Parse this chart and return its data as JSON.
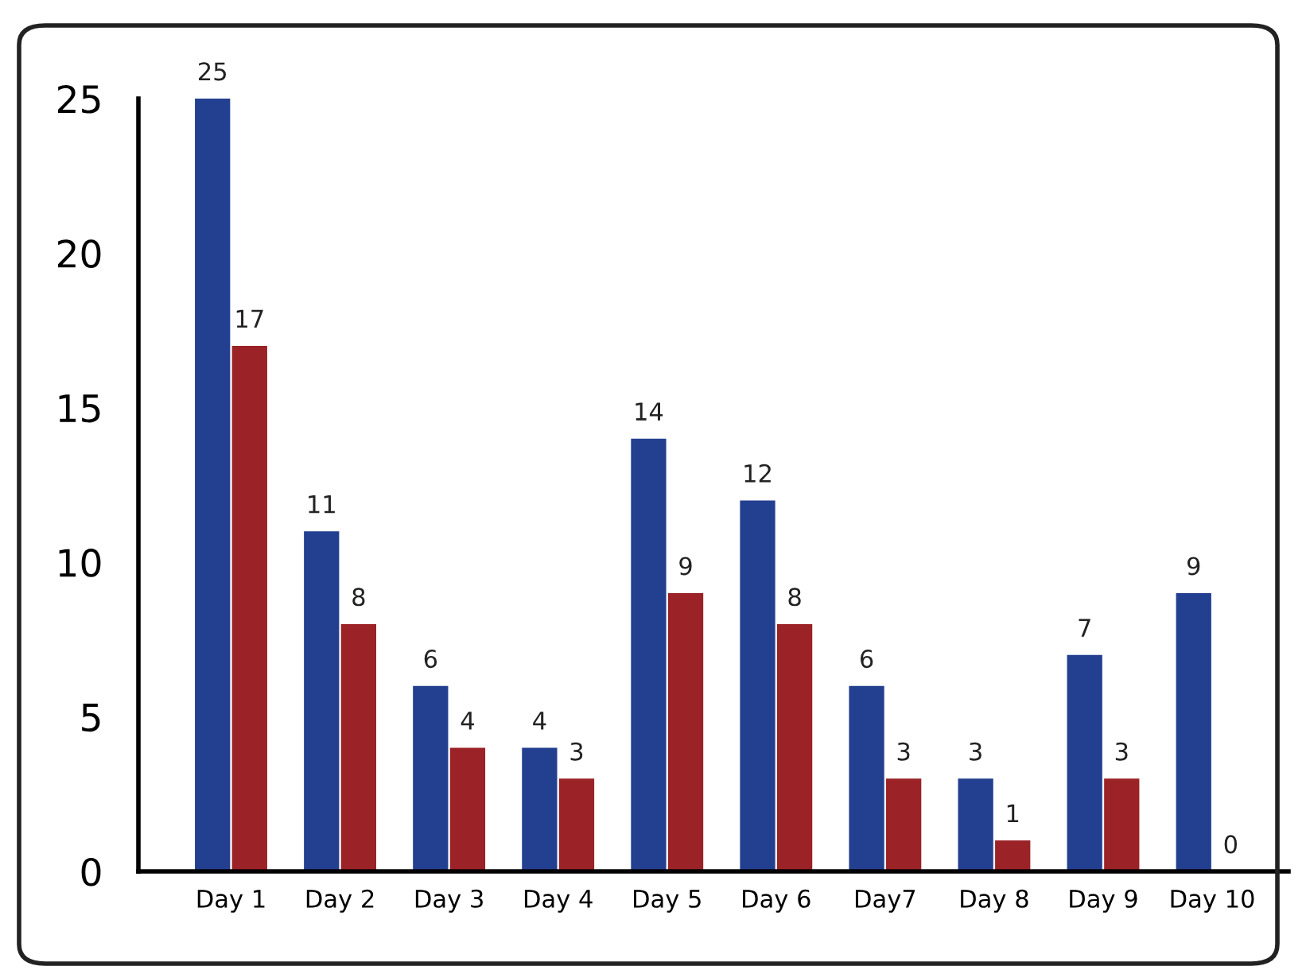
{
  "chart_data": {
    "type": "bar",
    "categories": [
      "Day 1",
      "Day 2",
      "Day 3",
      "Day 4",
      "Day 5",
      "Day 6",
      "Day7",
      "Day 8",
      "Day 9",
      "Day 10"
    ],
    "series": [
      {
        "color": "#233f8f",
        "values": [
          25,
          11,
          6,
          4,
          14,
          12,
          6,
          3,
          7,
          9
        ]
      },
      {
        "color": "#9b2226",
        "values": [
          17,
          8,
          4,
          3,
          9,
          8,
          3,
          1,
          3,
          0
        ]
      }
    ],
    "data_labels": true,
    "ylim": [
      0,
      25
    ],
    "yticks": [
      0,
      5,
      10,
      15,
      20,
      25
    ],
    "grid": false,
    "legend": false
  }
}
